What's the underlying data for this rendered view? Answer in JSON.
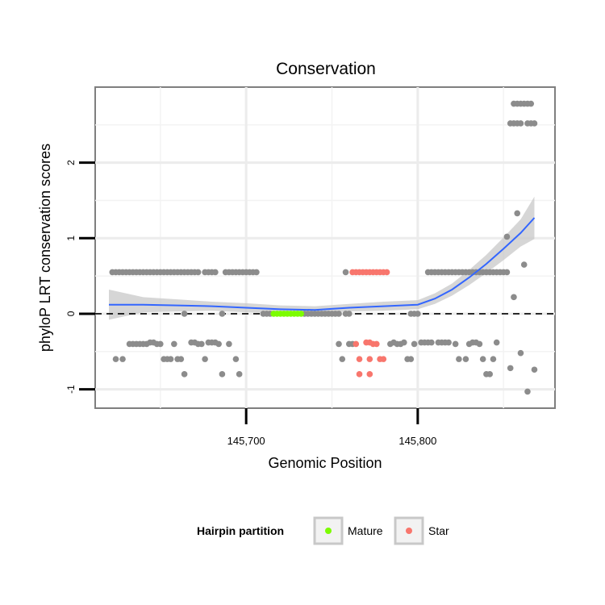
{
  "chart_data": {
    "type": "scatter",
    "title": "Conservation",
    "xlabel": "Genomic Position",
    "ylabel": "phyloP LRT conservation scores",
    "xlim": [
      145612,
      145880
    ],
    "ylim": [
      -1.25,
      3.0
    ],
    "x_ticks": [
      145700,
      145800
    ],
    "x_tick_labels": [
      "145,700",
      "145,800"
    ],
    "y_ticks": [
      -1,
      0,
      1,
      2
    ],
    "y_tick_labels": [
      "-1",
      "0",
      "1",
      "2"
    ],
    "reference_line": {
      "y": 0,
      "style": "dashed"
    },
    "grid": true,
    "legend": {
      "title": "Hairpin partition",
      "position": "bottom",
      "entries": [
        {
          "label": "Mature",
          "color": "#7CFC00"
        },
        {
          "label": "Star",
          "color": "#F8766D"
        }
      ]
    },
    "colors": {
      "other": "#8c8c8c",
      "Mature": "#7CFC00",
      "Star": "#F8766D",
      "smooth": "#3366FF",
      "ribbon": "#c8c8c8"
    },
    "series": [
      {
        "name": "Other",
        "points": [
          [
            145622,
            0.55
          ],
          [
            145624,
            0.55
          ],
          [
            145626,
            0.55
          ],
          [
            145628,
            0.55
          ],
          [
            145630,
            0.55
          ],
          [
            145632,
            0.55
          ],
          [
            145634,
            0.55
          ],
          [
            145636,
            0.55
          ],
          [
            145638,
            0.55
          ],
          [
            145640,
            0.55
          ],
          [
            145642,
            0.55
          ],
          [
            145644,
            0.55
          ],
          [
            145646,
            0.55
          ],
          [
            145648,
            0.55
          ],
          [
            145650,
            0.55
          ],
          [
            145652,
            0.55
          ],
          [
            145654,
            0.55
          ],
          [
            145656,
            0.55
          ],
          [
            145658,
            0.55
          ],
          [
            145660,
            0.55
          ],
          [
            145662,
            0.55
          ],
          [
            145664,
            0.55
          ],
          [
            145666,
            0.55
          ],
          [
            145668,
            0.55
          ],
          [
            145670,
            0.55
          ],
          [
            145672,
            0.55
          ],
          [
            145676,
            0.55
          ],
          [
            145678,
            0.55
          ],
          [
            145680,
            0.55
          ],
          [
            145682,
            0.55
          ],
          [
            145688,
            0.55
          ],
          [
            145690,
            0.55
          ],
          [
            145692,
            0.55
          ],
          [
            145694,
            0.55
          ],
          [
            145696,
            0.55
          ],
          [
            145698,
            0.55
          ],
          [
            145700,
            0.55
          ],
          [
            145702,
            0.55
          ],
          [
            145704,
            0.55
          ],
          [
            145706,
            0.55
          ],
          [
            145758,
            0.55
          ],
          [
            145806,
            0.55
          ],
          [
            145808,
            0.55
          ],
          [
            145810,
            0.55
          ],
          [
            145812,
            0.55
          ],
          [
            145814,
            0.55
          ],
          [
            145816,
            0.55
          ],
          [
            145818,
            0.55
          ],
          [
            145820,
            0.55
          ],
          [
            145822,
            0.55
          ],
          [
            145824,
            0.55
          ],
          [
            145826,
            0.55
          ],
          [
            145828,
            0.55
          ],
          [
            145830,
            0.55
          ],
          [
            145832,
            0.55
          ],
          [
            145834,
            0.55
          ],
          [
            145836,
            0.55
          ],
          [
            145838,
            0.55
          ],
          [
            145840,
            0.55
          ],
          [
            145842,
            0.55
          ],
          [
            145844,
            0.55
          ],
          [
            145846,
            0.55
          ],
          [
            145848,
            0.55
          ],
          [
            145850,
            0.55
          ],
          [
            145852,
            0.55
          ],
          [
            145710,
            0
          ],
          [
            145712,
            0
          ],
          [
            145714,
            0
          ],
          [
            145734,
            0
          ],
          [
            145736,
            0
          ],
          [
            145738,
            0
          ],
          [
            145740,
            0
          ],
          [
            145742,
            0
          ],
          [
            145744,
            0
          ],
          [
            145746,
            0
          ],
          [
            145748,
            0
          ],
          [
            145750,
            0
          ],
          [
            145752,
            0
          ],
          [
            145754,
            0
          ],
          [
            145664,
            0
          ],
          [
            145686,
            0
          ],
          [
            145758,
            0
          ],
          [
            145760,
            0
          ],
          [
            145796,
            0
          ],
          [
            145798,
            0
          ],
          [
            145800,
            0
          ],
          [
            145624,
            -0.6
          ],
          [
            145628,
            -0.6
          ],
          [
            145632,
            -0.4
          ],
          [
            145634,
            -0.4
          ],
          [
            145636,
            -0.4
          ],
          [
            145638,
            -0.4
          ],
          [
            145640,
            -0.4
          ],
          [
            145642,
            -0.4
          ],
          [
            145644,
            -0.38
          ],
          [
            145646,
            -0.38
          ],
          [
            145648,
            -0.4
          ],
          [
            145650,
            -0.4
          ],
          [
            145652,
            -0.6
          ],
          [
            145654,
            -0.6
          ],
          [
            145656,
            -0.6
          ],
          [
            145658,
            -0.4
          ],
          [
            145660,
            -0.6
          ],
          [
            145662,
            -0.6
          ],
          [
            145664,
            -0.8
          ],
          [
            145668,
            -0.38
          ],
          [
            145670,
            -0.38
          ],
          [
            145672,
            -0.4
          ],
          [
            145674,
            -0.4
          ],
          [
            145676,
            -0.6
          ],
          [
            145678,
            -0.38
          ],
          [
            145680,
            -0.38
          ],
          [
            145682,
            -0.38
          ],
          [
            145684,
            -0.4
          ],
          [
            145686,
            -0.8
          ],
          [
            145690,
            -0.4
          ],
          [
            145694,
            -0.6
          ],
          [
            145696,
            -0.8
          ],
          [
            145754,
            -0.4
          ],
          [
            145756,
            -0.6
          ],
          [
            145760,
            -0.4
          ],
          [
            145762,
            -0.4
          ],
          [
            145784,
            -0.4
          ],
          [
            145786,
            -0.38
          ],
          [
            145788,
            -0.4
          ],
          [
            145790,
            -0.4
          ],
          [
            145792,
            -0.38
          ],
          [
            145794,
            -0.6
          ],
          [
            145796,
            -0.6
          ],
          [
            145798,
            -0.4
          ],
          [
            145802,
            -0.38
          ],
          [
            145804,
            -0.38
          ],
          [
            145806,
            -0.38
          ],
          [
            145808,
            -0.38
          ],
          [
            145812,
            -0.38
          ],
          [
            145814,
            -0.38
          ],
          [
            145816,
            -0.38
          ],
          [
            145818,
            -0.38
          ],
          [
            145822,
            -0.4
          ],
          [
            145824,
            -0.6
          ],
          [
            145828,
            -0.6
          ],
          [
            145830,
            -0.4
          ],
          [
            145832,
            -0.38
          ],
          [
            145834,
            -0.38
          ],
          [
            145836,
            -0.4
          ],
          [
            145838,
            -0.6
          ],
          [
            145840,
            -0.8
          ],
          [
            145842,
            -0.8
          ],
          [
            145844,
            -0.6
          ],
          [
            145846,
            -0.38
          ],
          [
            145852,
            1.02
          ],
          [
            145856,
            0.22
          ],
          [
            145858,
            1.33
          ],
          [
            145862,
            0.65
          ],
          [
            145864,
            -1.03
          ],
          [
            145860,
            -0.52
          ],
          [
            145854,
            -0.72
          ],
          [
            145868,
            -0.74
          ],
          [
            145856,
            2.78
          ],
          [
            145858,
            2.78
          ],
          [
            145860,
            2.78
          ],
          [
            145862,
            2.78
          ],
          [
            145864,
            2.78
          ],
          [
            145866,
            2.78
          ],
          [
            145854,
            2.52
          ],
          [
            145856,
            2.52
          ],
          [
            145858,
            2.52
          ],
          [
            145860,
            2.52
          ],
          [
            145864,
            2.52
          ],
          [
            145866,
            2.52
          ],
          [
            145868,
            2.52
          ]
        ]
      },
      {
        "name": "Mature",
        "points": [
          [
            145716,
            0
          ],
          [
            145718,
            0
          ],
          [
            145720,
            0
          ],
          [
            145722,
            0
          ],
          [
            145724,
            0
          ],
          [
            145726,
            0
          ],
          [
            145728,
            0
          ],
          [
            145730,
            0
          ],
          [
            145732,
            0
          ]
        ]
      },
      {
        "name": "Star",
        "points": [
          [
            145762,
            0.55
          ],
          [
            145764,
            0.55
          ],
          [
            145766,
            0.55
          ],
          [
            145768,
            0.55
          ],
          [
            145770,
            0.55
          ],
          [
            145772,
            0.55
          ],
          [
            145774,
            0.55
          ],
          [
            145776,
            0.55
          ],
          [
            145778,
            0.55
          ],
          [
            145780,
            0.55
          ],
          [
            145782,
            0.55
          ],
          [
            145764,
            -0.4
          ],
          [
            145766,
            -0.6
          ],
          [
            145770,
            -0.38
          ],
          [
            145772,
            -0.38
          ],
          [
            145774,
            -0.4
          ],
          [
            145776,
            -0.4
          ],
          [
            145778,
            -0.6
          ],
          [
            145780,
            -0.6
          ],
          [
            145766,
            -0.8
          ],
          [
            145772,
            -0.8
          ],
          [
            145772,
            -0.6
          ]
        ]
      }
    ],
    "smooth": {
      "points": [
        [
          145620,
          0.12
        ],
        [
          145640,
          0.12
        ],
        [
          145660,
          0.11
        ],
        [
          145680,
          0.1
        ],
        [
          145700,
          0.08
        ],
        [
          145720,
          0.06
        ],
        [
          145740,
          0.05
        ],
        [
          145760,
          0.08
        ],
        [
          145780,
          0.1
        ],
        [
          145800,
          0.12
        ],
        [
          145810,
          0.2
        ],
        [
          145820,
          0.32
        ],
        [
          145830,
          0.48
        ],
        [
          145840,
          0.66
        ],
        [
          145850,
          0.86
        ],
        [
          145860,
          1.07
        ],
        [
          145868,
          1.27
        ]
      ],
      "band": [
        0.2,
        0.1,
        0.08,
        0.06,
        0.06,
        0.05,
        0.05,
        0.05,
        0.06,
        0.06,
        0.07,
        0.08,
        0.1,
        0.12,
        0.15,
        0.18,
        0.28
      ]
    }
  }
}
